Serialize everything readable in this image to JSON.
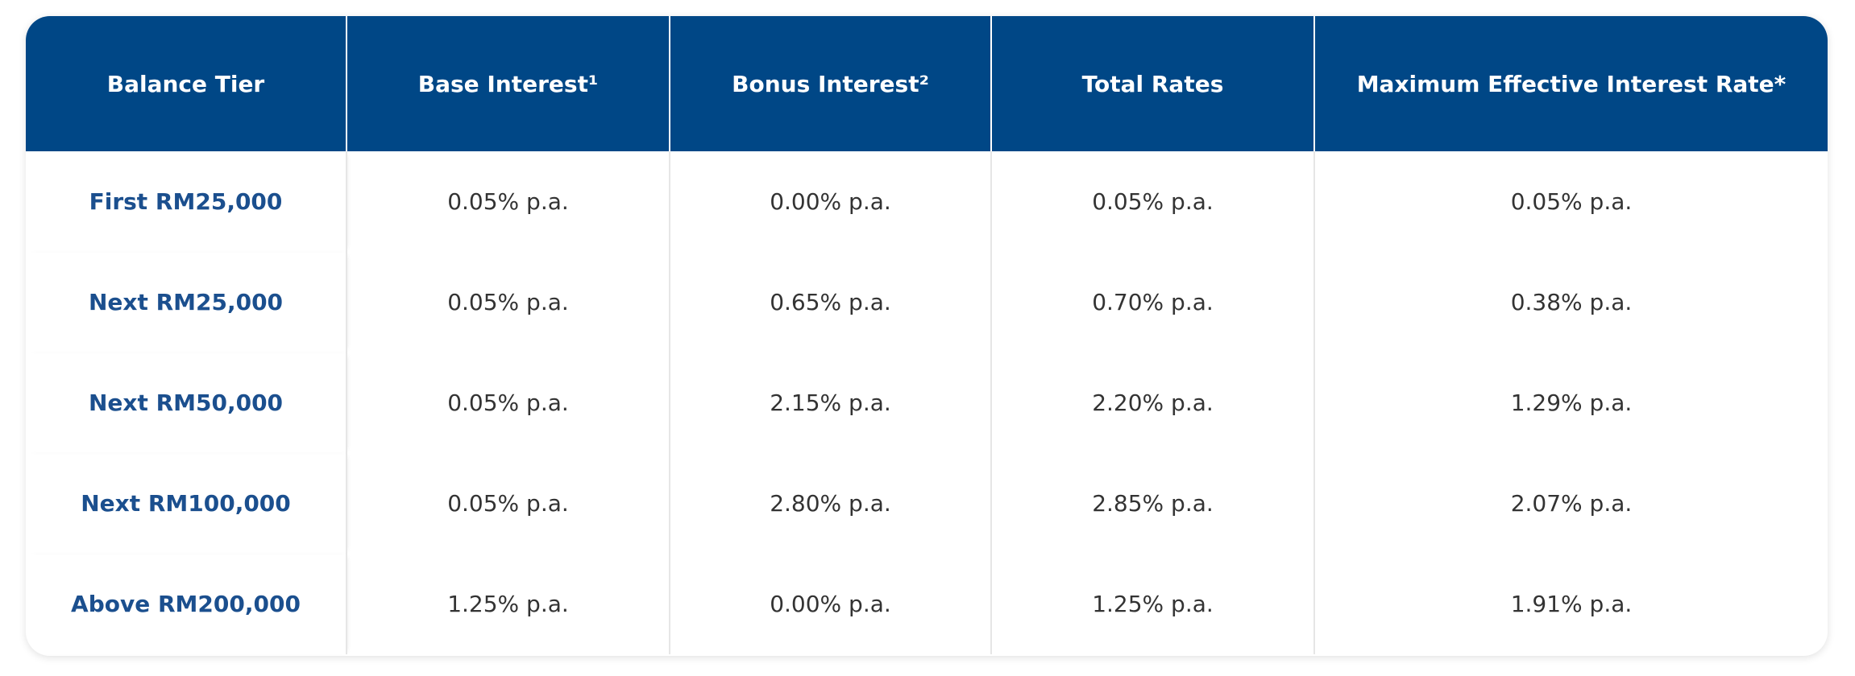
{
  "table": {
    "header": [
      "Balance Tier",
      "Base Interest¹",
      "Bonus Interest²",
      "Total Rates",
      "Maximum Effective Interest Rate*"
    ],
    "rows": [
      [
        "First RM25,000",
        "0.05% p.a.",
        "0.00% p.a.",
        "0.05% p.a.",
        "0.05% p.a."
      ],
      [
        "Next RM25,000",
        "0.05% p.a.",
        "0.65% p.a.",
        "0.70% p.a.",
        "0.38% p.a."
      ],
      [
        "Next RM50,000",
        "0.05% p.a.",
        "2.15% p.a.",
        "2.20% p.a.",
        "1.29% p.a."
      ],
      [
        "Next RM100,000",
        "0.05% p.a.",
        "2.80% p.a.",
        "2.85% p.a.",
        "2.07% p.a."
      ],
      [
        "Above RM200,000",
        "1.25% p.a.",
        "0.00% p.a.",
        "1.25% p.a.",
        "1.91% p.a."
      ]
    ]
  }
}
